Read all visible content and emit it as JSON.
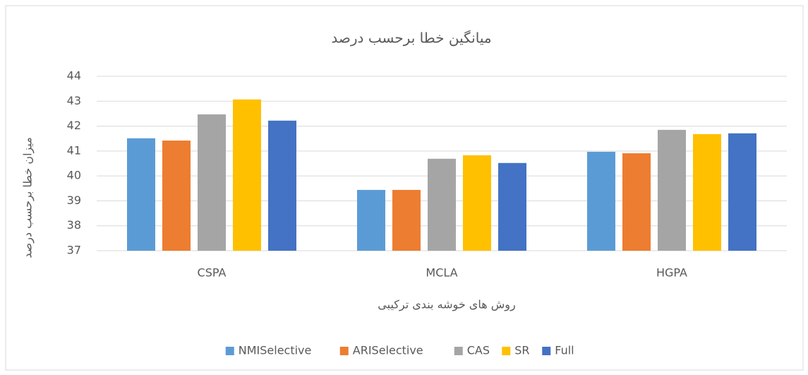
{
  "chart_data": {
    "type": "bar",
    "title": "میانگین خطا برحسب درصد",
    "x_label": "روش های خوشه بندی ترکیبی",
    "y_label": "میزان خطا برحسب درصد",
    "categories": [
      "CSPA",
      "MCLA",
      "HGPA"
    ],
    "series": [
      {
        "name": "NMISelective",
        "color": "#5b9bd5",
        "values": [
          41.51,
          39.44,
          40.97
        ]
      },
      {
        "name": "ARISelective",
        "color": "#ed7d31",
        "values": [
          41.42,
          39.44,
          40.91
        ]
      },
      {
        "name": "CAS",
        "color": "#a5a5a5",
        "values": [
          42.47,
          40.69,
          41.85
        ]
      },
      {
        "name": "SR",
        "color": "#ffc000",
        "values": [
          43.07,
          40.83,
          41.68
        ]
      },
      {
        "name": "Full",
        "color": "#4472c4",
        "values": [
          42.22,
          40.52,
          41.71
        ]
      }
    ],
    "ylim": [
      37,
      44
    ],
    "yticks": [
      37,
      38,
      39,
      40,
      41,
      42,
      43,
      44
    ],
    "grid": true,
    "legend": "bottom"
  }
}
